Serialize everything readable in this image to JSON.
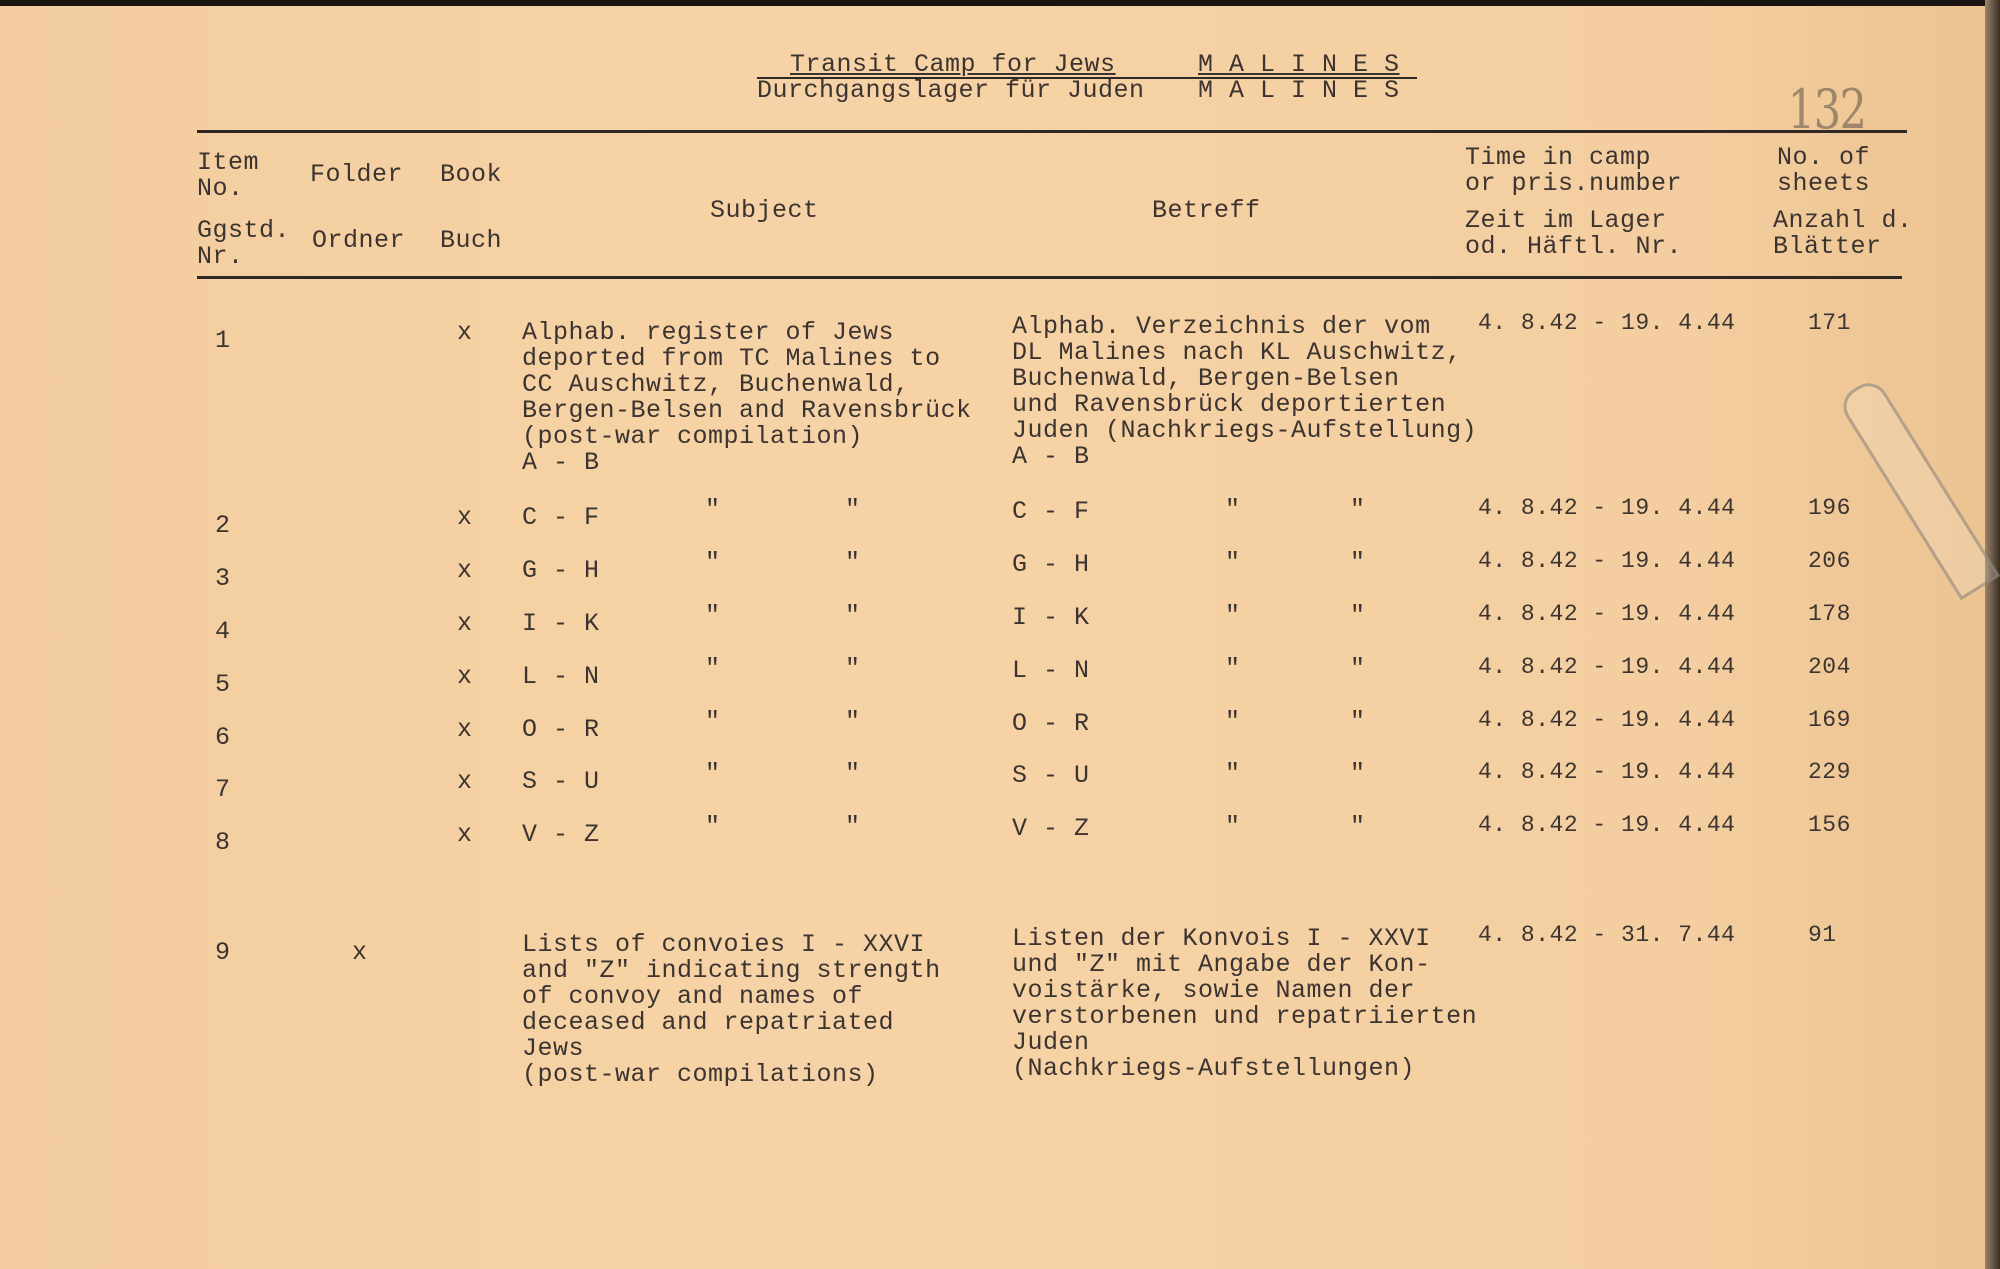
{
  "header": {
    "title_en": "Transit Camp for Jews",
    "title_de": "Durchgangslager für Juden",
    "place_1": "M A L I N E S",
    "place_2": "M A L I N E S",
    "page_stamp": "132"
  },
  "columns": {
    "item_en": "Item\nNo.",
    "item_de": "Ggstd.\nNr.",
    "folder_en": "Folder",
    "folder_de": "Ordner",
    "book_en": "Book",
    "book_de": "Buch",
    "subject": "Subject",
    "betreff": "Betreff",
    "time_en": "Time in camp\nor pris.number",
    "time_de": "Zeit im Lager\nod. Häftl. Nr.",
    "sheets_en": "No. of\nsheets",
    "sheets_de": "Anzahl d.\nBlätter"
  },
  "rows": [
    {
      "item": "1",
      "folder": "",
      "book": "x",
      "subject": "Alphab. register of Jews\ndeported from TC Malines to\nCC Auschwitz, Buchenwald,\nBergen-Belsen and Ravensbrück\n(post-war compilation)\nA - B",
      "betreff": "Alphab. Verzeichnis der vom\nDL Malines nach KL Auschwitz,\nBuchenwald, Bergen-Belsen\nund Ravensbrück deportierten\nJuden (Nachkriegs-Aufstellung)\nA - B",
      "time": "4. 8.42 - 19. 4.44",
      "sheets": "171"
    },
    {
      "item": "2",
      "folder": "",
      "book": "x",
      "subject": "C - F",
      "betreff": "C - F",
      "ditto": "\"",
      "time": "4. 8.42 - 19. 4.44",
      "sheets": "196"
    },
    {
      "item": "3",
      "folder": "",
      "book": "x",
      "subject": "G - H",
      "betreff": "G - H",
      "ditto": "\"",
      "time": "4. 8.42 - 19. 4.44",
      "sheets": "206"
    },
    {
      "item": "4",
      "folder": "",
      "book": "x",
      "subject": "I - K",
      "betreff": "I - K",
      "ditto": "\"",
      "time": "4. 8.42 - 19. 4.44",
      "sheets": "178"
    },
    {
      "item": "5",
      "folder": "",
      "book": "x",
      "subject": "L - N",
      "betreff": "L - N",
      "ditto": "\"",
      "time": "4. 8.42 - 19. 4.44",
      "sheets": "204"
    },
    {
      "item": "6",
      "folder": "",
      "book": "x",
      "subject": "O - R",
      "betreff": "O - R",
      "ditto": "\"",
      "time": "4. 8.42 - 19. 4.44",
      "sheets": "169"
    },
    {
      "item": "7",
      "folder": "",
      "book": "x",
      "subject": "S - U",
      "betreff": "S - U",
      "ditto": "\"",
      "time": "4. 8.42 - 19. 4.44",
      "sheets": "229"
    },
    {
      "item": "8",
      "folder": "",
      "book": "x",
      "subject": "V - Z",
      "betreff": "V - Z",
      "ditto": "\"",
      "time": "4. 8.42 - 19. 4.44",
      "sheets": "156"
    },
    {
      "item": "9",
      "folder": "x",
      "book": "",
      "subject": "Lists of convoies I - XXVI\nand \"Z\" indicating strength\nof convoy and names of\ndeceased and repatriated\nJews\n(post-war compilations)",
      "betreff": "Listen der Konvois I - XXVI\nund \"Z\" mit Angabe der Kon-\nvoistärke, sowie Namen der\nverstorbenen und repatriierten\nJuden\n(Nachkriegs-Aufstellungen)",
      "time": "4. 8.42 - 31. 7.44",
      "sheets": "91"
    }
  ],
  "colors": {
    "paper": "#f5d0a3",
    "ink": "#3b3430"
  }
}
